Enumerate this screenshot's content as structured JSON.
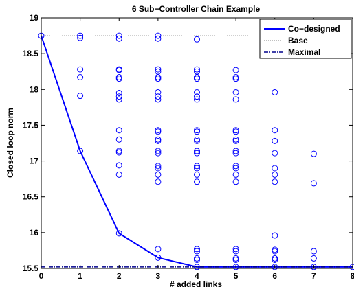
{
  "chart_data": {
    "type": "scatter",
    "title": "6 Sub−Controller Chain Example",
    "xlabel": "# added links",
    "ylabel": "Closed loop norm",
    "xlim": [
      0,
      8
    ],
    "ylim": [
      15.5,
      19
    ],
    "xticks": [
      "0",
      "1",
      "2",
      "3",
      "4",
      "5",
      "6",
      "7",
      "8"
    ],
    "yticks": [
      "15.5",
      "16",
      "16.5",
      "17",
      "17.5",
      "18",
      "18.5",
      "19"
    ],
    "grid": false,
    "legend_position": "top-right",
    "colors": {
      "series": "#0000ff",
      "base": "#808080",
      "axes": "#000000"
    },
    "scatter": {
      "name": "Configurations",
      "points": [
        [
          0,
          18.75
        ],
        [
          1,
          18.75
        ],
        [
          1,
          18.72
        ],
        [
          1,
          18.28
        ],
        [
          1,
          18.17
        ],
        [
          1,
          17.91
        ],
        [
          1,
          17.14
        ],
        [
          2,
          18.75
        ],
        [
          2,
          18.71
        ],
        [
          2,
          18.28
        ],
        [
          2,
          18.27
        ],
        [
          2,
          18.17
        ],
        [
          2,
          18.15
        ],
        [
          2,
          17.95
        ],
        [
          2,
          17.9
        ],
        [
          2,
          17.86
        ],
        [
          2,
          17.43
        ],
        [
          2,
          17.3
        ],
        [
          2,
          17.14
        ],
        [
          2,
          17.12
        ],
        [
          2,
          16.94
        ],
        [
          2,
          16.81
        ],
        [
          2,
          15.99
        ],
        [
          3,
          18.75
        ],
        [
          3,
          18.71
        ],
        [
          3,
          18.28
        ],
        [
          3,
          18.25
        ],
        [
          3,
          18.17
        ],
        [
          3,
          18.15
        ],
        [
          3,
          17.96
        ],
        [
          3,
          17.9
        ],
        [
          3,
          17.86
        ],
        [
          3,
          17.43
        ],
        [
          3,
          17.41
        ],
        [
          3,
          17.3
        ],
        [
          3,
          17.28
        ],
        [
          3,
          17.14
        ],
        [
          3,
          17.11
        ],
        [
          3,
          16.93
        ],
        [
          3,
          16.9
        ],
        [
          3,
          16.81
        ],
        [
          3,
          16.71
        ],
        [
          3,
          15.77
        ],
        [
          3,
          15.65
        ],
        [
          4,
          18.7
        ],
        [
          4,
          18.28
        ],
        [
          4,
          18.25
        ],
        [
          4,
          18.17
        ],
        [
          4,
          18.15
        ],
        [
          4,
          17.96
        ],
        [
          4,
          17.9
        ],
        [
          4,
          17.86
        ],
        [
          4,
          17.43
        ],
        [
          4,
          17.41
        ],
        [
          4,
          17.3
        ],
        [
          4,
          17.28
        ],
        [
          4,
          17.14
        ],
        [
          4,
          17.11
        ],
        [
          4,
          16.93
        ],
        [
          4,
          16.9
        ],
        [
          4,
          16.81
        ],
        [
          4,
          16.71
        ],
        [
          4,
          15.77
        ],
        [
          4,
          15.74
        ],
        [
          4,
          15.64
        ],
        [
          4,
          15.62
        ],
        [
          4,
          15.52
        ],
        [
          5,
          18.27
        ],
        [
          5,
          18.17
        ],
        [
          5,
          18.15
        ],
        [
          5,
          17.96
        ],
        [
          5,
          17.86
        ],
        [
          5,
          17.43
        ],
        [
          5,
          17.41
        ],
        [
          5,
          17.3
        ],
        [
          5,
          17.28
        ],
        [
          5,
          17.14
        ],
        [
          5,
          17.11
        ],
        [
          5,
          16.93
        ],
        [
          5,
          16.9
        ],
        [
          5,
          16.81
        ],
        [
          5,
          16.71
        ],
        [
          5,
          15.77
        ],
        [
          5,
          15.74
        ],
        [
          5,
          15.64
        ],
        [
          5,
          15.62
        ],
        [
          5,
          15.52
        ],
        [
          6,
          17.96
        ],
        [
          6,
          17.43
        ],
        [
          6,
          17.28
        ],
        [
          6,
          17.11
        ],
        [
          6,
          16.9
        ],
        [
          6,
          16.81
        ],
        [
          6,
          16.71
        ],
        [
          6,
          15.96
        ],
        [
          6,
          15.76
        ],
        [
          6,
          15.74
        ],
        [
          6,
          15.64
        ],
        [
          6,
          15.62
        ],
        [
          6,
          15.52
        ],
        [
          7,
          17.1
        ],
        [
          7,
          16.69
        ],
        [
          7,
          15.74
        ],
        [
          7,
          15.64
        ],
        [
          7,
          15.52
        ],
        [
          8,
          15.52
        ]
      ]
    },
    "series": [
      {
        "name": "Co−designed",
        "style": "solid",
        "x": [
          0,
          1,
          2,
          3,
          4,
          5,
          6,
          7,
          8
        ],
        "y": [
          18.75,
          17.14,
          15.99,
          15.65,
          15.52,
          15.52,
          15.52,
          15.52,
          15.52
        ]
      },
      {
        "name": "Base",
        "style": "dotted",
        "x": [
          0,
          8
        ],
        "y": [
          18.75,
          18.75
        ]
      },
      {
        "name": "Maximal",
        "style": "dashdot",
        "x": [
          0,
          8
        ],
        "y": [
          15.52,
          15.52
        ]
      }
    ]
  }
}
